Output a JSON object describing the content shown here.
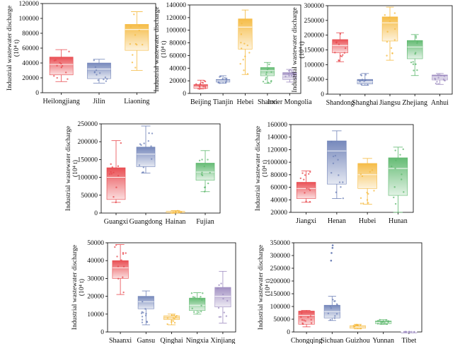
{
  "palette": {
    "red": "#e8474c",
    "blue": "#6f82b8",
    "yellow": "#f5b93e",
    "green": "#5db86d",
    "purple": "#9e8cc0",
    "axis": "#000000"
  },
  "chart_data": [
    {
      "type": "box",
      "ylabel": "Industrial wastewater discharge",
      "yunit": "(10⁴ t)",
      "ylim": [
        0,
        120000
      ],
      "yticks": [
        0,
        20000,
        40000,
        60000,
        80000,
        100000,
        120000
      ],
      "categories": [
        "Heilongjiang",
        "Jilin",
        "Liaoning"
      ],
      "colors": [
        "red",
        "blue",
        "yellow"
      ],
      "boxes": [
        {
          "min": 15000,
          "q1": 24000,
          "median": 38000,
          "q3": 48000,
          "max": 58000
        },
        {
          "min": 13000,
          "q1": 19000,
          "median": 32000,
          "q3": 40000,
          "max": 45000
        },
        {
          "min": 30000,
          "q1": 57000,
          "median": 85000,
          "q3": 92000,
          "max": 109000
        }
      ]
    },
    {
      "type": "box",
      "ylabel": "Industrial wastewater discharge",
      "yunit": "(10⁴ t)",
      "ylim": [
        0,
        140000
      ],
      "yticks": [
        0,
        20000,
        40000,
        60000,
        80000,
        100000,
        120000,
        140000
      ],
      "categories": [
        "Beijing",
        "Tianjin",
        "Hebei",
        "Shanxi",
        "Inner Mongolia"
      ],
      "colors": [
        "red",
        "blue",
        "yellow",
        "green",
        "purple"
      ],
      "boxes": [
        {
          "min": 7000,
          "q1": 8000,
          "median": 10000,
          "q3": 14000,
          "max": 21000
        },
        {
          "min": 16000,
          "q1": 18000,
          "median": 20000,
          "q3": 22000,
          "max": 28000
        },
        {
          "min": 30000,
          "q1": 70000,
          "median": 105000,
          "q3": 118000,
          "max": 132000
        },
        {
          "min": 16000,
          "q1": 28000,
          "median": 36000,
          "q3": 41000,
          "max": 49000
        },
        {
          "min": 18000,
          "q1": 22000,
          "median": 28000,
          "q3": 33000,
          "max": 38000
        }
      ]
    },
    {
      "type": "box",
      "ylabel": "Industrial wastewater discharge",
      "yunit": "(10⁴ t)",
      "ylim": [
        0,
        300000
      ],
      "yticks": [
        0,
        50000,
        100000,
        150000,
        200000,
        250000,
        300000
      ],
      "categories": [
        "Shandong",
        "Shanghai",
        "Jiangsu",
        "Zhejiang",
        "Anhui"
      ],
      "colors": [
        "red",
        "blue",
        "yellow",
        "green",
        "purple"
      ],
      "boxes": [
        {
          "min": 110000,
          "q1": 140000,
          "median": 165000,
          "q3": 185000,
          "max": 208000
        },
        {
          "min": 30000,
          "q1": 35000,
          "median": 42000,
          "q3": 50000,
          "max": 70000
        },
        {
          "min": 115000,
          "q1": 180000,
          "median": 242000,
          "q3": 262000,
          "max": 295000
        },
        {
          "min": 63000,
          "q1": 120000,
          "median": 160000,
          "q3": 182000,
          "max": 202000
        },
        {
          "min": 33000,
          "q1": 48000,
          "median": 58000,
          "q3": 65000,
          "max": 70000
        }
      ]
    },
    {
      "type": "box",
      "ylabel": "Industrial wastewater discharge",
      "yunit": "(10⁴ t)",
      "ylim": [
        0,
        250000
      ],
      "yticks": [
        0,
        50000,
        100000,
        150000,
        200000,
        250000
      ],
      "categories": [
        "Guangxi",
        "Guangdong",
        "Hainan",
        "Fujian"
      ],
      "colors": [
        "red",
        "blue",
        "yellow",
        "green"
      ],
      "boxes": [
        {
          "min": 30000,
          "q1": 38000,
          "median": 100000,
          "q3": 127000,
          "max": 203000
        },
        {
          "min": 112000,
          "q1": 130000,
          "median": 165000,
          "q3": 185000,
          "max": 244000
        },
        {
          "min": 0,
          "q1": 1000,
          "median": 3000,
          "q3": 5000,
          "max": 7000
        },
        {
          "min": 60000,
          "q1": 92000,
          "median": 115000,
          "q3": 140000,
          "max": 175000
        }
      ]
    },
    {
      "type": "box",
      "ylabel": "Industrial wastewater discharge",
      "yunit": "(10⁴ t)",
      "ylim": [
        20000,
        160000
      ],
      "yticks": [
        20000,
        40000,
        60000,
        80000,
        100000,
        120000,
        140000,
        160000
      ],
      "categories": [
        "Jiangxi",
        "Henan",
        "Hubei",
        "Hunan"
      ],
      "colors": [
        "red",
        "blue",
        "yellow",
        "green"
      ],
      "boxes": [
        {
          "min": 36000,
          "q1": 42000,
          "median": 58000,
          "q3": 68000,
          "max": 86000
        },
        {
          "min": 42000,
          "q1": 65000,
          "median": 118000,
          "q3": 134000,
          "max": 150000
        },
        {
          "min": 33000,
          "q1": 58000,
          "median": 80000,
          "q3": 98000,
          "max": 106000
        },
        {
          "min": 20000,
          "q1": 47000,
          "median": 90000,
          "q3": 107000,
          "max": 124000
        }
      ]
    },
    {
      "type": "box",
      "ylabel": "Industrial wastewater discharge",
      "yunit": "(10⁴ t)",
      "ylim": [
        0,
        50000
      ],
      "yticks": [
        0,
        10000,
        20000,
        30000,
        40000,
        50000
      ],
      "categories": [
        "Shaanxi",
        "Gansu",
        "Qinghai",
        "Ningxia",
        "Xinjiang"
      ],
      "colors": [
        "red",
        "blue",
        "yellow",
        "green",
        "purple"
      ],
      "boxes": [
        {
          "min": 21000,
          "q1": 30000,
          "median": 36000,
          "q3": 40000,
          "max": 49000
        },
        {
          "min": 4000,
          "q1": 13000,
          "median": 17000,
          "q3": 20000,
          "max": 23000
        },
        {
          "min": 4000,
          "q1": 7000,
          "median": 8500,
          "q3": 9000,
          "max": 10000
        },
        {
          "min": 10000,
          "q1": 12000,
          "median": 15000,
          "q3": 19000,
          "max": 22000
        },
        {
          "min": 5000,
          "q1": 14000,
          "median": 20000,
          "q3": 25000,
          "max": 34000
        }
      ]
    },
    {
      "type": "box",
      "ylabel": "Industrial wastewater discharge",
      "yunit": "(10⁴ t)",
      "ylim": [
        0,
        350000
      ],
      "yticks": [
        0,
        50000,
        100000,
        150000,
        200000,
        250000,
        300000,
        350000
      ],
      "categories": [
        "Chongqing",
        "Sichuan",
        "Guizhou",
        "Yunnan",
        "Tibet"
      ],
      "colors": [
        "red",
        "blue",
        "yellow",
        "green",
        "purple"
      ],
      "boxes": [
        {
          "min": 20000,
          "q1": 30000,
          "median": 65000,
          "q3": 82000,
          "max": 85000
        },
        {
          "min": 45000,
          "q1": 55000,
          "median": 80000,
          "q3": 105000,
          "max": 140000,
          "outliers": [
            280000,
            310000,
            330000,
            340000
          ]
        },
        {
          "min": 12000,
          "q1": 15000,
          "median": 20000,
          "q3": 24000,
          "max": 30000
        },
        {
          "min": 30000,
          "q1": 33000,
          "median": 37000,
          "q3": 43000,
          "max": 48000
        },
        {
          "min": 0,
          "q1": 0,
          "median": 0,
          "q3": 500,
          "max": 1000
        }
      ]
    }
  ]
}
